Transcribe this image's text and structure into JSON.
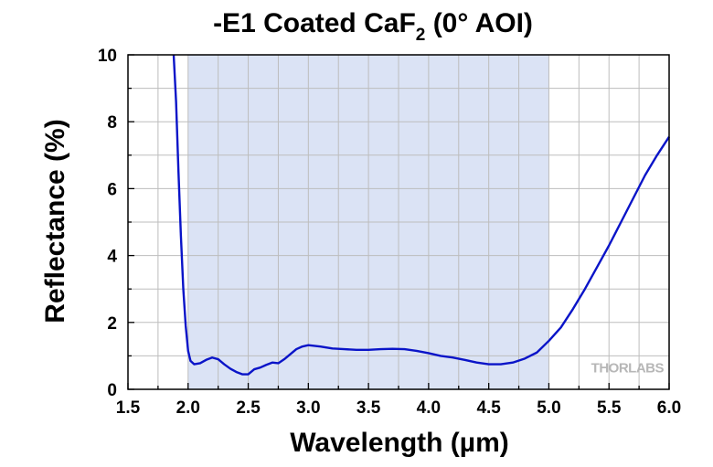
{
  "chart_data": {
    "type": "line",
    "title": "-E1 Coated CaF",
    "title_subscript": "2",
    "title_suffix": " (0° AOI)",
    "xlabel": "Wavelength (µm)",
    "ylabel": "Reflectance (%)",
    "xlim": [
      1.5,
      6.0
    ],
    "ylim": [
      0,
      10
    ],
    "xticks": [
      "1.5",
      "2.0",
      "2.5",
      "3.0",
      "3.5",
      "4.0",
      "4.5",
      "5.0",
      "5.5",
      "6.0"
    ],
    "yticks": [
      "0",
      "2",
      "4",
      "6",
      "8",
      "10"
    ],
    "grid": true,
    "highlight_band": [
      2.0,
      5.0
    ],
    "colors": {
      "line": "#0a14c8",
      "band": "#dbe3f5",
      "grid": "#bdbdbd"
    },
    "watermark": "THORLABS",
    "series": [
      {
        "x": [
          1.88,
          1.9,
          1.92,
          1.94,
          1.96,
          1.98,
          2.0,
          2.02,
          2.05,
          2.1,
          2.15,
          2.2,
          2.25,
          2.3,
          2.35,
          2.4,
          2.45,
          2.5,
          2.55,
          2.6,
          2.65,
          2.7,
          2.75,
          2.8,
          2.85,
          2.9,
          2.95,
          3.0,
          3.05,
          3.1,
          3.2,
          3.3,
          3.4,
          3.5,
          3.6,
          3.7,
          3.8,
          3.9,
          4.0,
          4.1,
          4.2,
          4.3,
          4.4,
          4.5,
          4.6,
          4.7,
          4.8,
          4.9,
          5.0,
          5.1,
          5.2,
          5.3,
          5.4,
          5.5,
          5.6,
          5.7,
          5.8,
          5.9,
          6.0
        ],
        "y": [
          10.0,
          8.6,
          6.5,
          4.6,
          3.0,
          1.9,
          1.15,
          0.85,
          0.75,
          0.78,
          0.88,
          0.95,
          0.9,
          0.75,
          0.62,
          0.52,
          0.45,
          0.45,
          0.6,
          0.65,
          0.73,
          0.8,
          0.78,
          0.9,
          1.05,
          1.2,
          1.28,
          1.32,
          1.3,
          1.28,
          1.22,
          1.2,
          1.18,
          1.18,
          1.2,
          1.21,
          1.2,
          1.15,
          1.08,
          1.0,
          0.95,
          0.88,
          0.8,
          0.75,
          0.75,
          0.8,
          0.92,
          1.1,
          1.45,
          1.85,
          2.4,
          3.0,
          3.65,
          4.3,
          5.0,
          5.7,
          6.4,
          7.0,
          7.55
        ]
      }
    ]
  }
}
